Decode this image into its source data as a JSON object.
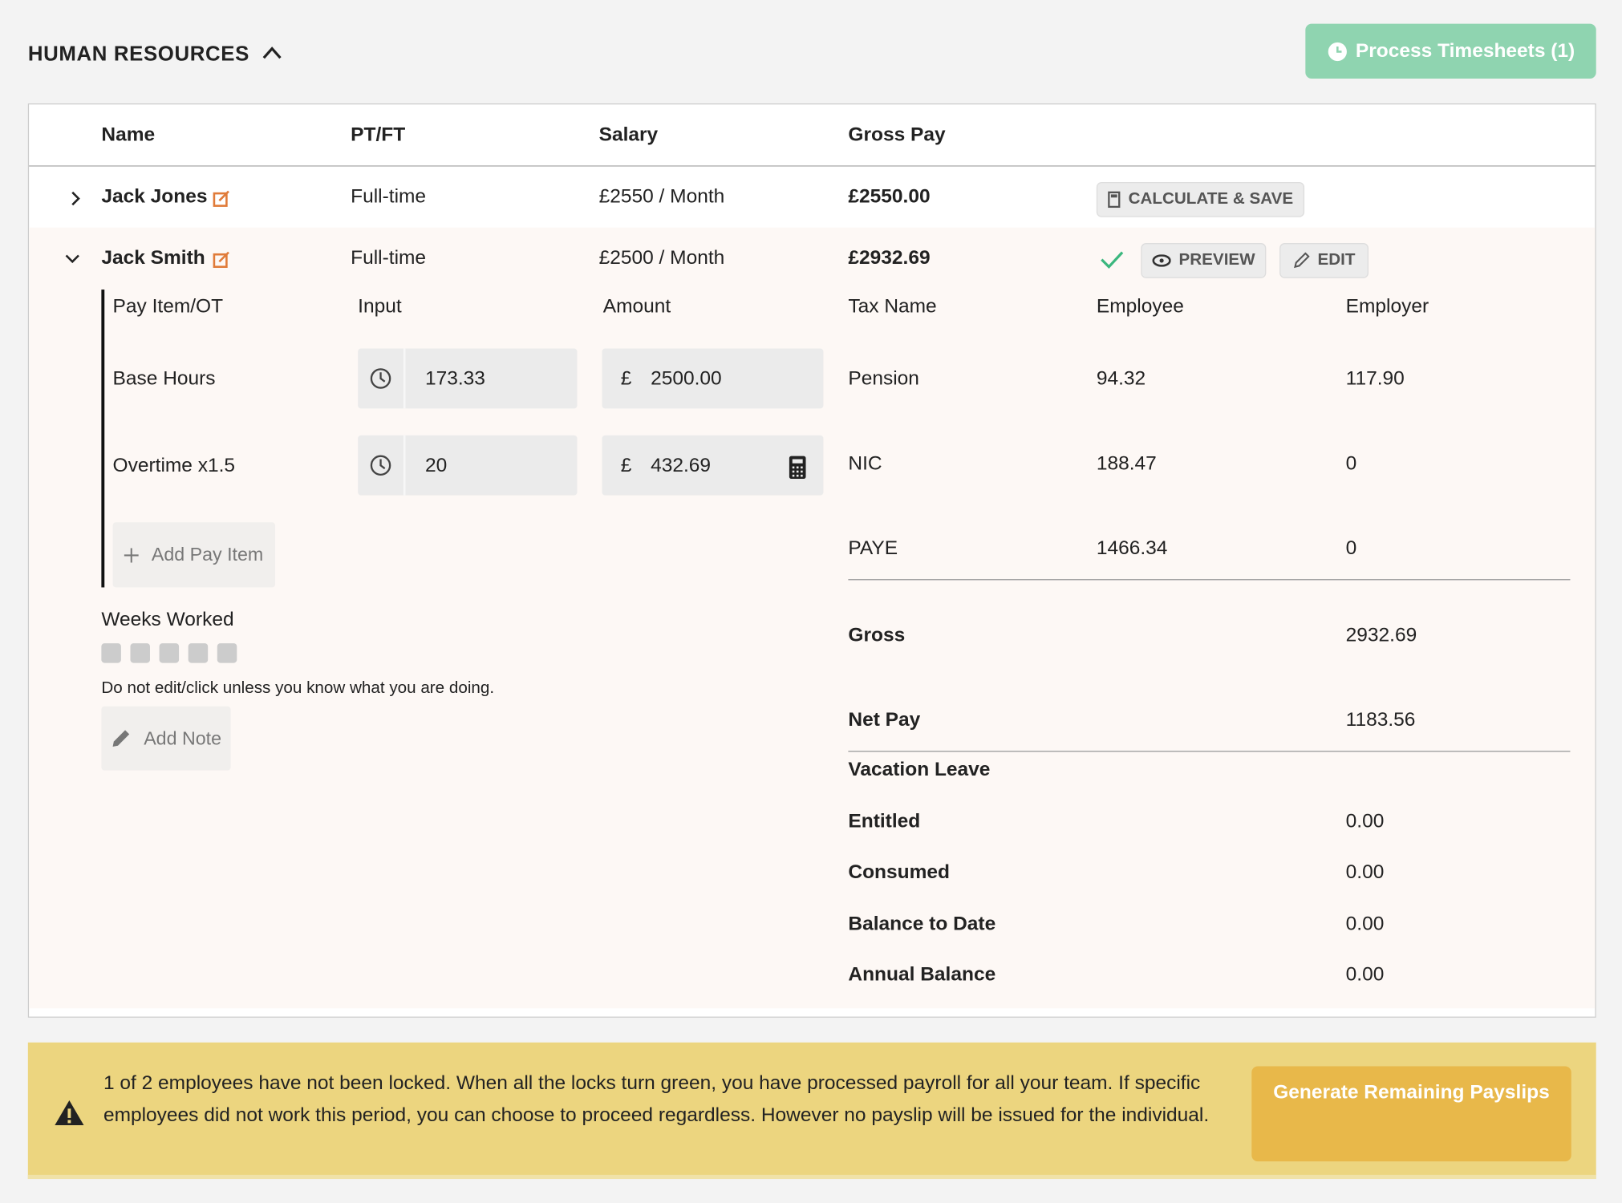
{
  "header": {
    "title": "HUMAN RESOURCES",
    "button": "Process Timesheets (1)"
  },
  "table": {
    "columns": [
      "Name",
      "PT/FT",
      "Salary",
      "Gross Pay"
    ],
    "rows": [
      {
        "name": "Jack Jones",
        "type": "Full-time",
        "salary": "£2550 / Month",
        "gross": "£2550.00",
        "actions": [
          "CALCULATE & SAVE"
        ]
      },
      {
        "name": "Jack Smith",
        "type": "Full-time",
        "salary": "£2500 / Month",
        "gross": "£2932.69",
        "actions": [
          "PREVIEW",
          "EDIT"
        ]
      }
    ]
  },
  "details": {
    "pay_columns": [
      "Pay Item/OT",
      "Input",
      "Amount"
    ],
    "pay_items": [
      {
        "name": "Base Hours",
        "input": "173.33",
        "currency": "£",
        "amount": "2500.00"
      },
      {
        "name": "Overtime x1.5",
        "input": "20",
        "currency": "£",
        "amount": "432.69"
      }
    ],
    "add_pay_item": "Add Pay Item",
    "weeks_label": "Weeks Worked",
    "warning": "Do not edit/click unless you know what you are doing.",
    "add_note": "Add Note",
    "tax_columns": [
      "Tax Name",
      "Employee",
      "Employer"
    ],
    "taxes": [
      [
        "Pension",
        "94.32",
        "117.90"
      ],
      [
        "NIC",
        "188.47",
        "0"
      ],
      [
        "PAYE",
        "1466.34",
        "0"
      ]
    ],
    "totals": [
      [
        "Gross",
        "2932.69"
      ],
      [
        "Net Pay",
        "1183.56"
      ]
    ],
    "vacation_title": "Vacation Leave",
    "vacation": [
      [
        "Entitled",
        "0.00"
      ],
      [
        "Consumed",
        "0.00"
      ],
      [
        "Balance to Date",
        "0.00"
      ],
      [
        "Annual Balance",
        "0.00"
      ]
    ]
  },
  "alert": {
    "text": "1 of 2 employees have not been locked. When all the locks turn green, you have processed payroll for all your team. If specific employees did not work this period, you can choose to proceed regardless. However no payslip will be issued for the individual.",
    "button": "Generate Remaining Payslips"
  }
}
